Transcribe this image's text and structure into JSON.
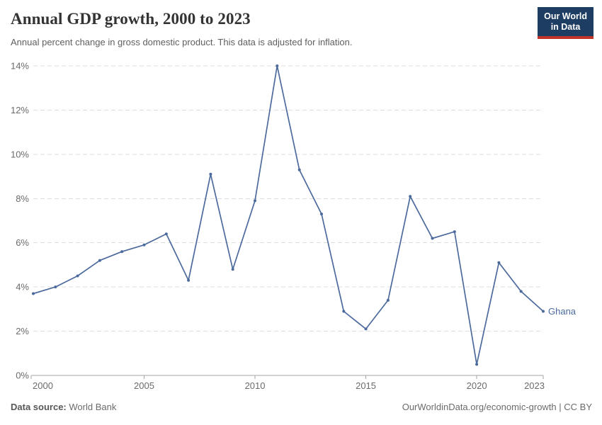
{
  "header": {
    "title": "Annual GDP growth, 2000 to 2023",
    "subtitle": "Annual percent change in gross domestic product. This data is adjusted for inflation."
  },
  "logo": {
    "line1": "Our World",
    "line2": "in Data",
    "bg_color": "#1d3d63",
    "accent_color": "#c0342c"
  },
  "chart_data": {
    "type": "line",
    "title": "Annual GDP growth, 2000 to 2023",
    "xlabel": "",
    "ylabel": "",
    "ylim": [
      0,
      14
    ],
    "yticks": [
      0,
      2,
      4,
      6,
      8,
      10,
      12,
      14
    ],
    "ytick_format": "{v}%",
    "xticks": [
      2000,
      2005,
      2010,
      2015,
      2020,
      2023
    ],
    "grid": "horizontal-dashed",
    "legend_position": "end-of-line-label",
    "end_label": "Ghana",
    "colors": {
      "grid": "#dddddd",
      "axis": "#a5a5a5",
      "tick_text": "#6b6b6b"
    },
    "series": [
      {
        "name": "Ghana",
        "color": "#4C6A9C",
        "x": [
          2000,
          2001,
          2002,
          2003,
          2004,
          2005,
          2006,
          2007,
          2008,
          2009,
          2010,
          2011,
          2012,
          2013,
          2014,
          2015,
          2016,
          2017,
          2018,
          2019,
          2020,
          2021,
          2022,
          2023
        ],
        "values": [
          3.7,
          4.0,
          4.5,
          5.2,
          5.6,
          5.9,
          6.4,
          4.3,
          9.1,
          4.8,
          7.9,
          14.0,
          9.3,
          7.3,
          2.9,
          2.1,
          3.4,
          8.1,
          6.2,
          6.5,
          0.5,
          5.1,
          3.8,
          2.9
        ]
      }
    ]
  },
  "footer": {
    "source_label": "Data source:",
    "source_value": "World Bank",
    "attribution": "OurWorldinData.org/economic-growth | CC BY"
  }
}
